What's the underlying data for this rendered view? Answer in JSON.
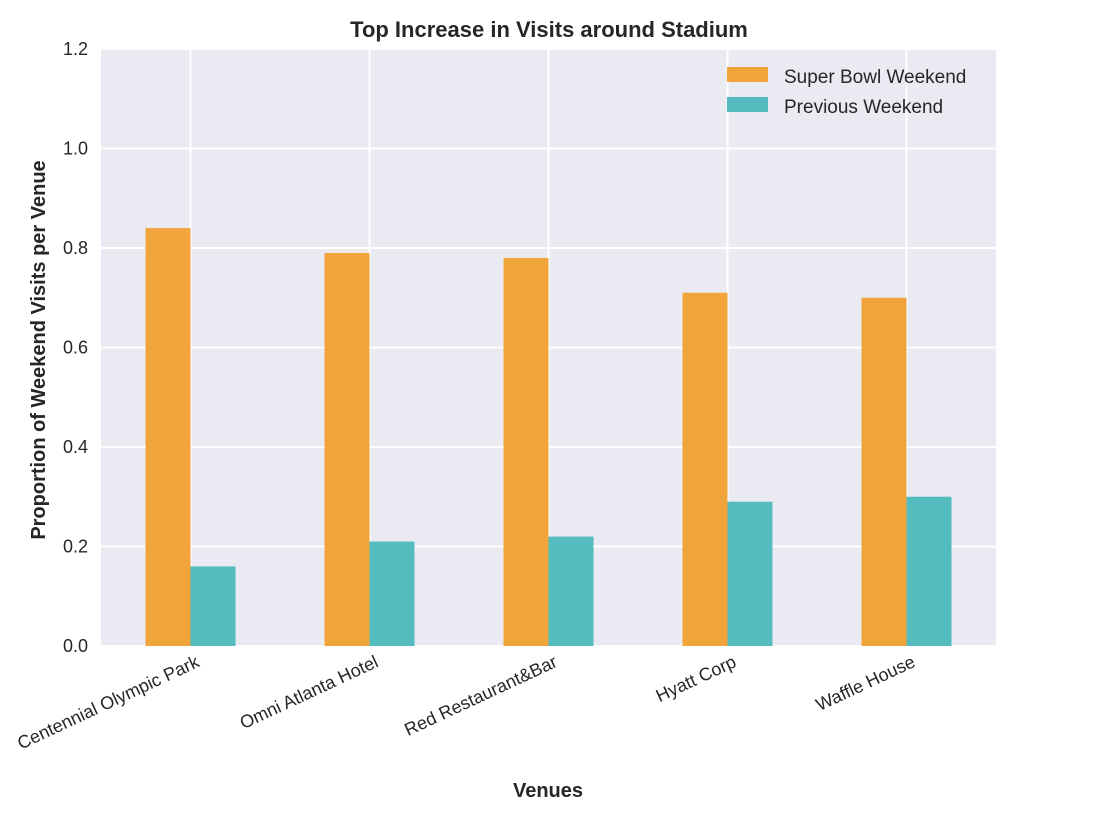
{
  "chart_data": {
    "type": "bar",
    "title": "Top Increase in Visits around Stadium",
    "xlabel": "Venues",
    "ylabel": "Proportion of Weekend Visits per Venue",
    "categories": [
      "Centennial Olympic Park",
      "Omni Atlanta Hotel",
      "Red Restaurant&Bar",
      "Hyatt Corp",
      "Waffle House"
    ],
    "series": [
      {
        "name": "Super Bowl Weekend",
        "color": "#f0a43a",
        "values": [
          0.84,
          0.79,
          0.78,
          0.71,
          0.7
        ]
      },
      {
        "name": "Previous Weekend",
        "color": "#54bcbf",
        "values": [
          0.16,
          0.21,
          0.22,
          0.29,
          0.3
        ]
      }
    ],
    "ylim": [
      0,
      1.2
    ],
    "yticks": [
      "0.0",
      "0.2",
      "0.4",
      "0.6",
      "0.8",
      "1.0",
      "1.2"
    ],
    "grid": true,
    "legend_position": "top-right",
    "background": "#eaeaf2"
  }
}
